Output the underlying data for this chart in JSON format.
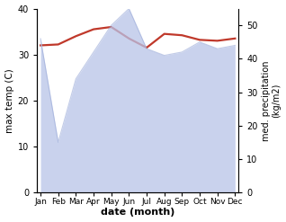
{
  "months": [
    "Jan",
    "Feb",
    "Mar",
    "Apr",
    "May",
    "Jun",
    "Jul",
    "Aug",
    "Sep",
    "Oct",
    "Nov",
    "Dec"
  ],
  "month_indices": [
    0,
    1,
    2,
    3,
    4,
    5,
    6,
    7,
    8,
    9,
    10,
    11
  ],
  "temperature": [
    32.0,
    32.2,
    34.0,
    35.5,
    36.0,
    33.5,
    31.5,
    34.5,
    34.2,
    33.2,
    33.0,
    33.5
  ],
  "precipitation": [
    46,
    15,
    34,
    42,
    50,
    55,
    43,
    41,
    42,
    45,
    43,
    44
  ],
  "temp_color": "#c0392b",
  "precip_fill_color": "#b8c4e8",
  "precip_line_color": "#9aaad8",
  "temp_ylim": [
    0,
    40
  ],
  "precip_ylim": [
    0,
    55
  ],
  "temp_yticks": [
    0,
    10,
    20,
    30,
    40
  ],
  "precip_yticks": [
    0,
    10,
    20,
    30,
    40,
    50
  ],
  "ylabel_left": "max temp (C)",
  "ylabel_right": "med. precipitation\n(kg/m2)",
  "xlabel": "date (month)",
  "bg_color": "#ffffff",
  "fig_bg_color": "#ffffff"
}
